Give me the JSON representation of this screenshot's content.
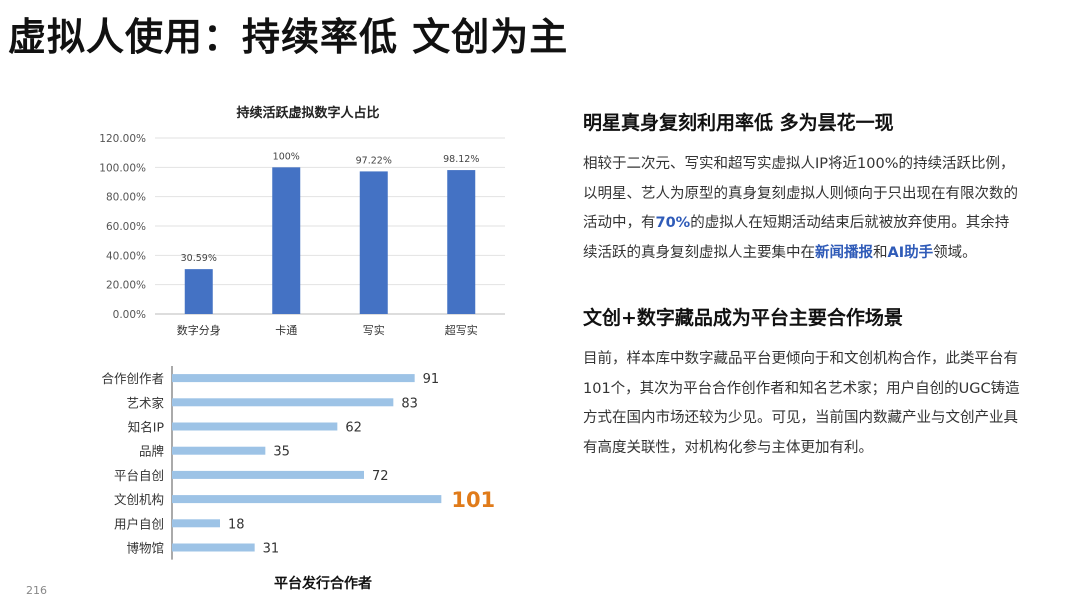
{
  "header": {
    "title": "虚拟人使用：持续率低 文创为主"
  },
  "chart_data": [
    {
      "type": "bar",
      "title": "持续活跃虚拟数字人占比",
      "categories": [
        "数字分身",
        "卡通",
        "写实",
        "超写实"
      ],
      "values": [
        30.59,
        100,
        97.22,
        98.12
      ],
      "value_labels": [
        "30.59%",
        "100%",
        "97.22%",
        "98.12%"
      ],
      "ylim": [
        0,
        120
      ],
      "yticks": [
        "0.00%",
        "20.00%",
        "40.00%",
        "60.00%",
        "80.00%",
        "100.00%",
        "120.00%"
      ],
      "color": "#4472c4",
      "grid": true
    },
    {
      "type": "bar",
      "orientation": "horizontal",
      "title": "平台发行合作者",
      "categories": [
        "合作创作者",
        "艺术家",
        "知名IP",
        "品牌",
        "平台自创",
        "文创机构",
        "用户自创",
        "博物馆"
      ],
      "values": [
        91,
        83,
        62,
        35,
        72,
        101,
        18,
        31
      ],
      "value_labels": [
        "91",
        "83",
        "62",
        "35",
        "72",
        "101",
        "18",
        "31"
      ],
      "xlim": [
        0,
        105
      ],
      "color": "#9dc3e6",
      "highlight_color": "#e07b1a",
      "highlight_index": 5
    }
  ],
  "sections": [
    {
      "heading": "明星真身复刻利用率低 多为昙花一现",
      "body_1": "相较于二次元、写实和超写实虚拟人IP将近100%的持续活跃比例，以明星、艺人为原型的真身复刻虚拟人则倾向于只出现在有限次数的活动中，有",
      "body_hl_1": "70%",
      "body_2": "的虚拟人在短期活动结束后就被放弃使用。其余持续活跃的真身复刻虚拟人主要集中在",
      "body_hl_2": "新闻播报",
      "body_3": "和",
      "body_hl_3": "AI助手",
      "body_4": "领域。"
    },
    {
      "heading": "文创+数字藏品成为平台主要合作场景",
      "body": "目前，样本库中数字藏品平台更倾向于和文创机构合作，此类平台有101个，其次为平台合作创作者和知名艺术家；用户自创的UGC铸造方式在国内市场还较为少见。可见，当前国内数藏产业与文创产业具有高度关联性，对机构化参与主体更加有利。"
    }
  ],
  "footer": {
    "page_number": "216"
  }
}
